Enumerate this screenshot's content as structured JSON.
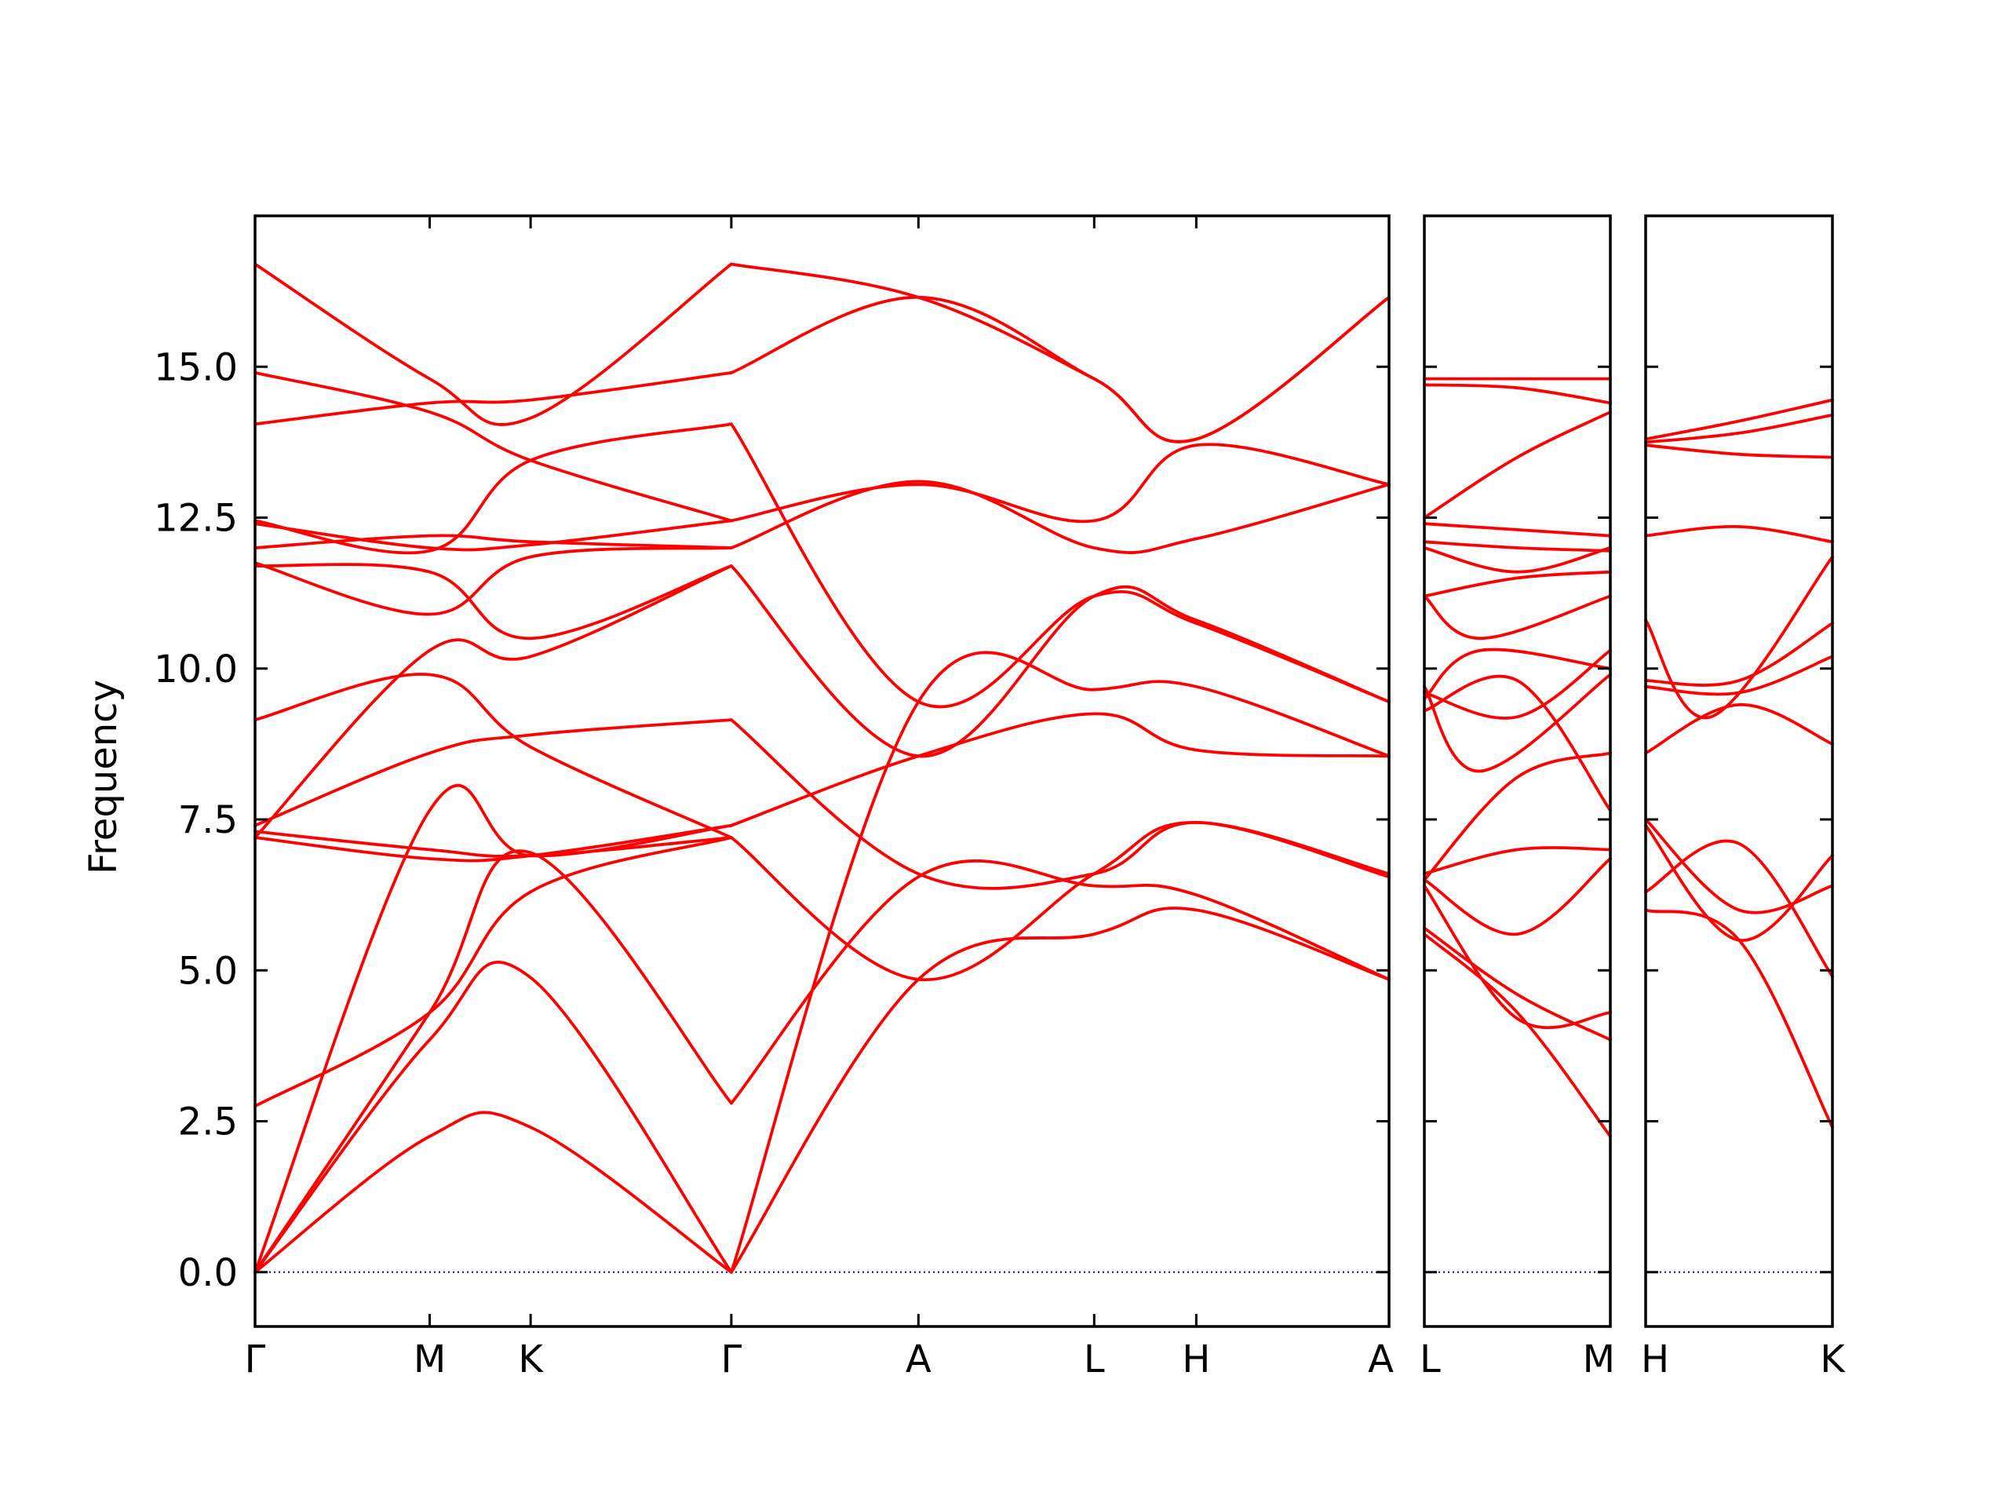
{
  "chart_data": {
    "type": "line",
    "title": "",
    "ylabel": "Frequency",
    "ylim": [
      -0.9,
      17.5
    ],
    "yticks": [
      "0.0",
      "2.5",
      "5.0",
      "7.5",
      "10.0",
      "12.5",
      "15.0"
    ],
    "yticks_values": [
      0.0,
      2.5,
      5.0,
      7.5,
      10.0,
      12.5,
      15.0
    ],
    "grid": false,
    "band_color": "#ff0000",
    "zero_line_color": "#0000cc",
    "segments": [
      {
        "path": [
          "Γ",
          "M",
          "K",
          "Γ",
          "A",
          "L",
          "H",
          "A"
        ],
        "labels": [
          "Γ",
          "M",
          "K",
          "Γ",
          "A",
          "L",
          "H",
          "A"
        ],
        "x": [
          0,
          0.154,
          0.243,
          0.42,
          0.585,
          0.74,
          0.83,
          1.0
        ],
        "bands": [
          [
            [
              0,
              0
            ],
            [
              0.154,
              2.25
            ],
            [
              0.243,
              2.4
            ],
            [
              0.42,
              0
            ]
          ],
          [
            [
              0,
              0
            ],
            [
              0.154,
              3.85
            ],
            [
              0.243,
              4.88
            ],
            [
              0.42,
              0
            ]
          ],
          [
            [
              0,
              0
            ],
            [
              0.154,
              4.3
            ],
            [
              0.243,
              6.95
            ],
            [
              0.42,
              2.8
            ]
          ],
          [
            [
              0,
              0
            ],
            [
              0.154,
              7.65
            ],
            [
              0.243,
              6.9
            ],
            [
              0.42,
              7.4
            ]
          ],
          [
            [
              0,
              2.75
            ],
            [
              0.154,
              4.3
            ],
            [
              0.243,
              6.3
            ],
            [
              0.42,
              7.2
            ]
          ],
          [
            [
              0,
              7.2
            ],
            [
              0.154,
              6.85
            ],
            [
              0.243,
              6.9
            ],
            [
              0.42,
              7.4
            ]
          ],
          [
            [
              0,
              7.3
            ],
            [
              0.154,
              7.0
            ],
            [
              0.243,
              6.9
            ],
            [
              0.42,
              7.2
            ]
          ],
          [
            [
              0,
              7.4
            ],
            [
              0.154,
              8.6
            ],
            [
              0.243,
              8.9
            ],
            [
              0.42,
              9.15
            ]
          ],
          [
            [
              0,
              9.15
            ],
            [
              0.154,
              9.9
            ],
            [
              0.243,
              8.7
            ],
            [
              0.42,
              7.2
            ]
          ],
          [
            [
              0,
              7.2
            ],
            [
              0.154,
              10.3
            ],
            [
              0.243,
              10.2
            ],
            [
              0.42,
              11.7
            ]
          ],
          [
            [
              0,
              11.7
            ],
            [
              0.154,
              11.6
            ],
            [
              0.243,
              10.5
            ],
            [
              0.42,
              11.7
            ]
          ],
          [
            [
              0,
              11.75
            ],
            [
              0.154,
              10.9
            ],
            [
              0.243,
              11.85
            ],
            [
              0.42,
              12.0
            ]
          ],
          [
            [
              0,
              12.0
            ],
            [
              0.154,
              12.2
            ],
            [
              0.243,
              12.1
            ],
            [
              0.42,
              12.0
            ]
          ],
          [
            [
              0,
              12.45
            ],
            [
              0.154,
              11.95
            ],
            [
              0.243,
              13.45
            ],
            [
              0.42,
              14.05
            ]
          ],
          [
            [
              0,
              12.4
            ],
            [
              0.154,
              12.0
            ],
            [
              0.243,
              12.05
            ],
            [
              0.42,
              12.45
            ]
          ],
          [
            [
              0,
              14.9
            ],
            [
              0.154,
              14.25
            ],
            [
              0.243,
              13.45
            ],
            [
              0.42,
              12.45
            ]
          ],
          [
            [
              0,
              14.05
            ],
            [
              0.154,
              14.4
            ],
            [
              0.243,
              14.45
            ],
            [
              0.42,
              14.9
            ]
          ],
          [
            [
              0,
              16.7
            ],
            [
              0.154,
              14.8
            ],
            [
              0.243,
              14.15
            ],
            [
              0.42,
              16.7
            ]
          ],
          [
            [
              0.42,
              0
            ],
            [
              0.585,
              4.85
            ],
            [
              0.74,
              5.6
            ],
            [
              0.83,
              6.0
            ],
            [
              1.0,
              4.85
            ]
          ],
          [
            [
              0.42,
              0
            ],
            [
              0.585,
              9.45
            ],
            [
              0.74,
              9.65
            ],
            [
              0.83,
              9.7
            ],
            [
              1.0,
              8.55
            ]
          ],
          [
            [
              0.42,
              2.8
            ],
            [
              0.585,
              6.55
            ],
            [
              0.74,
              6.4
            ],
            [
              0.83,
              6.25
            ],
            [
              1.0,
              4.85
            ]
          ],
          [
            [
              0.42,
              7.2
            ],
            [
              0.585,
              4.85
            ],
            [
              0.74,
              6.6
            ],
            [
              0.83,
              7.45
            ],
            [
              1.0,
              6.55
            ]
          ],
          [
            [
              0.42,
              7.4
            ],
            [
              0.585,
              8.55
            ],
            [
              0.74,
              9.25
            ],
            [
              0.83,
              8.65
            ],
            [
              1.0,
              8.55
            ]
          ],
          [
            [
              0.42,
              9.15
            ],
            [
              0.585,
              6.6
            ],
            [
              0.74,
              6.6
            ],
            [
              0.83,
              7.45
            ],
            [
              1.0,
              6.6
            ]
          ],
          [
            [
              0.42,
              11.7
            ],
            [
              0.585,
              8.55
            ],
            [
              0.74,
              11.2
            ],
            [
              0.83,
              10.8
            ],
            [
              1.0,
              9.45
            ]
          ],
          [
            [
              0.42,
              12.0
            ],
            [
              0.585,
              13.1
            ],
            [
              0.74,
              12.0
            ],
            [
              0.83,
              12.15
            ],
            [
              1.0,
              13.05
            ]
          ],
          [
            [
              0.42,
              12.45
            ],
            [
              0.585,
              13.05
            ],
            [
              0.74,
              12.45
            ],
            [
              0.83,
              13.7
            ],
            [
              1.0,
              13.05
            ]
          ],
          [
            [
              0.42,
              14.05
            ],
            [
              0.585,
              9.45
            ],
            [
              0.74,
              11.2
            ],
            [
              0.83,
              10.75
            ],
            [
              1.0,
              9.45
            ]
          ],
          [
            [
              0.42,
              14.9
            ],
            [
              0.585,
              16.15
            ],
            [
              0.74,
              14.8
            ],
            [
              0.83,
              13.8
            ],
            [
              1.0,
              16.15
            ]
          ],
          [
            [
              0.42,
              16.7
            ],
            [
              0.585,
              16.15
            ],
            [
              0.74,
              14.8
            ],
            [
              0.83,
              13.8
            ],
            [
              1.0,
              16.15
            ]
          ]
        ]
      },
      {
        "path": [
          "L",
          "M"
        ],
        "labels": [
          "L",
          "M"
        ],
        "x": [
          0,
          1
        ],
        "bands": [
          [
            [
              0,
              5.6
            ],
            [
              0.5,
              4.3
            ],
            [
              1.0,
              2.25
            ]
          ],
          [
            [
              0,
              5.7
            ],
            [
              0.5,
              4.6
            ],
            [
              1.0,
              3.85
            ]
          ],
          [
            [
              0,
              6.4
            ],
            [
              0.5,
              4.2
            ],
            [
              1.0,
              4.3
            ]
          ],
          [
            [
              0,
              6.5
            ],
            [
              0.5,
              5.6
            ],
            [
              1.0,
              6.85
            ]
          ],
          [
            [
              0,
              6.6
            ],
            [
              0.5,
              7.0
            ],
            [
              1.0,
              7.0
            ]
          ],
          [
            [
              0,
              6.5
            ],
            [
              0.5,
              8.2
            ],
            [
              1.0,
              8.6
            ]
          ],
          [
            [
              0,
              9.3
            ],
            [
              0.5,
              9.8
            ],
            [
              1.0,
              7.65
            ]
          ],
          [
            [
              0,
              9.6
            ],
            [
              0.5,
              9.2
            ],
            [
              1.0,
              10.3
            ]
          ],
          [
            [
              0,
              9.7
            ],
            [
              0.3,
              8.3
            ],
            [
              1.0,
              9.9
            ]
          ],
          [
            [
              0,
              9.5
            ],
            [
              0.3,
              10.3
            ],
            [
              1.0,
              10.0
            ]
          ],
          [
            [
              0,
              11.2
            ],
            [
              0.3,
              10.5
            ],
            [
              1.0,
              11.2
            ]
          ],
          [
            [
              0,
              11.2
            ],
            [
              0.5,
              11.5
            ],
            [
              1.0,
              11.6
            ]
          ],
          [
            [
              0,
              12.0
            ],
            [
              0.5,
              11.6
            ],
            [
              1.0,
              12.0
            ]
          ],
          [
            [
              0,
              12.1
            ],
            [
              0.5,
              12.0
            ],
            [
              1.0,
              11.95
            ]
          ],
          [
            [
              0,
              12.4
            ],
            [
              0.5,
              12.3
            ],
            [
              1.0,
              12.2
            ]
          ],
          [
            [
              0,
              12.5
            ],
            [
              0.5,
              13.5
            ],
            [
              1.0,
              14.25
            ]
          ],
          [
            [
              0,
              14.7
            ],
            [
              0.5,
              14.65
            ],
            [
              1.0,
              14.4
            ]
          ],
          [
            [
              0,
              14.8
            ],
            [
              0.5,
              14.8
            ],
            [
              1.0,
              14.8
            ]
          ]
        ]
      },
      {
        "path": [
          "H",
          "K"
        ],
        "labels": [
          "H",
          "K"
        ],
        "x": [
          0,
          1
        ],
        "bands": [
          [
            [
              0,
              6.0
            ],
            [
              0.5,
              5.5
            ],
            [
              1.0,
              2.4
            ]
          ],
          [
            [
              0,
              6.3
            ],
            [
              0.5,
              7.1
            ],
            [
              1.0,
              4.9
            ]
          ],
          [
            [
              0,
              7.4
            ],
            [
              0.5,
              5.5
            ],
            [
              1.0,
              6.9
            ]
          ],
          [
            [
              0,
              7.5
            ],
            [
              0.5,
              6.0
            ],
            [
              1.0,
              6.4
            ]
          ],
          [
            [
              0,
              8.6
            ],
            [
              0.5,
              9.4
            ],
            [
              1.0,
              8.75
            ]
          ],
          [
            [
              0,
              9.7
            ],
            [
              0.5,
              9.6
            ],
            [
              1.0,
              10.2
            ]
          ],
          [
            [
              0,
              9.8
            ],
            [
              0.5,
              9.8
            ],
            [
              1.0,
              10.75
            ]
          ],
          [
            [
              0,
              10.8
            ],
            [
              0.35,
              9.2
            ],
            [
              1.0,
              11.85
            ]
          ],
          [
            [
              0,
              12.2
            ],
            [
              0.5,
              12.35
            ],
            [
              1.0,
              12.1
            ]
          ],
          [
            [
              0,
              13.7
            ],
            [
              0.5,
              13.55
            ],
            [
              1.0,
              13.5
            ]
          ],
          [
            [
              0,
              13.75
            ],
            [
              0.5,
              13.9
            ],
            [
              1.0,
              14.2
            ]
          ],
          [
            [
              0,
              13.8
            ],
            [
              0.5,
              14.1
            ],
            [
              1.0,
              14.45
            ]
          ]
        ]
      }
    ]
  }
}
